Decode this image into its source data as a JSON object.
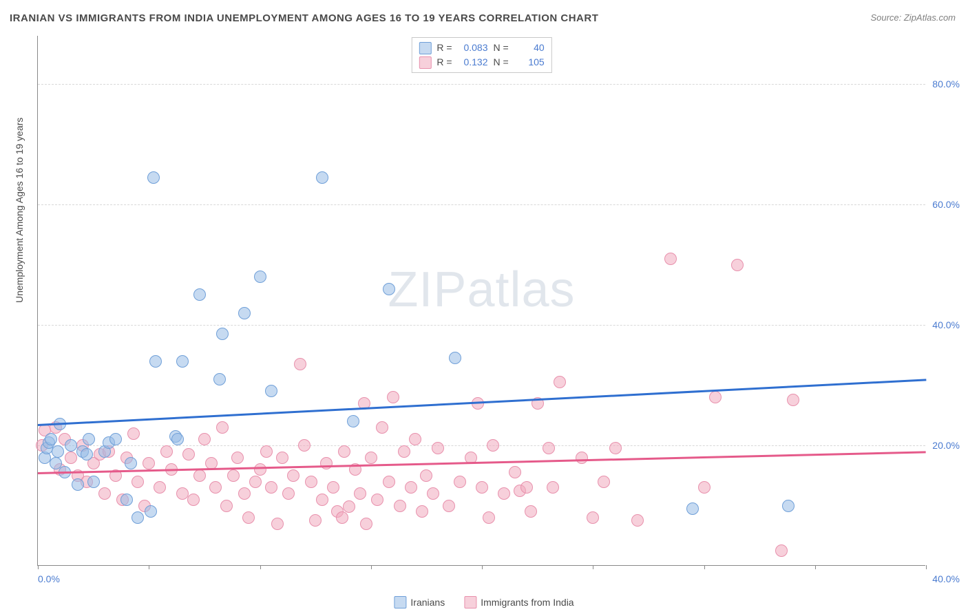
{
  "title": "IRANIAN VS IMMIGRANTS FROM INDIA UNEMPLOYMENT AMONG AGES 16 TO 19 YEARS CORRELATION CHART",
  "source": "Source: ZipAtlas.com",
  "ylabel": "Unemployment Among Ages 16 to 19 years",
  "watermark_a": "ZIP",
  "watermark_b": "atlas",
  "chart": {
    "type": "scatter",
    "xlim": [
      0,
      40
    ],
    "ylim": [
      0,
      88
    ],
    "xticks": [
      0,
      5,
      10,
      15,
      20,
      25,
      30,
      35,
      40
    ],
    "xtick_labels": {
      "0": "0.0%",
      "40": "40.0%"
    },
    "yticks": [
      20,
      40,
      60,
      80
    ],
    "ytick_labels": {
      "20": "20.0%",
      "40": "40.0%",
      "60": "60.0%",
      "80": "80.0%"
    },
    "grid_color": "#d8d8d8",
    "background_color": "#ffffff",
    "axis_color": "#888888",
    "tick_label_color": "#4a7bd0",
    "point_radius": 9,
    "series": [
      {
        "name": "Iranians",
        "fill": "rgba(151,187,229,0.55)",
        "stroke": "#6f9fd8",
        "trend_color": "#2f6fd0",
        "trend": {
          "x0": 0,
          "y0": 23.5,
          "x1": 40,
          "y1": 31.0
        },
        "R": "0.083",
        "N": "40",
        "points": [
          [
            0.3,
            18
          ],
          [
            0.4,
            19.5
          ],
          [
            0.5,
            20.5
          ],
          [
            0.6,
            21
          ],
          [
            0.8,
            17
          ],
          [
            0.9,
            19
          ],
          [
            1.0,
            23.5
          ],
          [
            1.2,
            15.5
          ],
          [
            1.5,
            20
          ],
          [
            1.8,
            13.5
          ],
          [
            2.0,
            19
          ],
          [
            2.2,
            18.5
          ],
          [
            2.3,
            21
          ],
          [
            2.5,
            14
          ],
          [
            3.0,
            19
          ],
          [
            3.2,
            20.5
          ],
          [
            3.5,
            21
          ],
          [
            4.0,
            11
          ],
          [
            4.2,
            17
          ],
          [
            4.5,
            8
          ],
          [
            5.1,
            9
          ],
          [
            5.2,
            64.5
          ],
          [
            5.3,
            34
          ],
          [
            6.2,
            21.5
          ],
          [
            6.3,
            21
          ],
          [
            6.5,
            34
          ],
          [
            7.3,
            45
          ],
          [
            8.2,
            31
          ],
          [
            8.3,
            38.5
          ],
          [
            9.3,
            42
          ],
          [
            10.0,
            48
          ],
          [
            10.5,
            29
          ],
          [
            12.8,
            64.5
          ],
          [
            14.2,
            24
          ],
          [
            15.8,
            46
          ],
          [
            18.8,
            34.5
          ],
          [
            29.5,
            9.5
          ],
          [
            33.8,
            10
          ]
        ]
      },
      {
        "name": "Immigrants from India",
        "fill": "rgba(240,170,190,0.55)",
        "stroke": "#e890ac",
        "trend_color": "#e55a8a",
        "trend": {
          "x0": 0,
          "y0": 15.5,
          "x1": 40,
          "y1": 19.0
        },
        "R": "0.132",
        "N": "105",
        "points": [
          [
            0.2,
            20
          ],
          [
            0.3,
            22.5
          ],
          [
            0.8,
            23
          ],
          [
            1.0,
            16
          ],
          [
            1.2,
            21
          ],
          [
            1.5,
            18
          ],
          [
            1.8,
            15
          ],
          [
            2.0,
            20
          ],
          [
            2.2,
            14
          ],
          [
            2.5,
            17
          ],
          [
            2.8,
            18.5
          ],
          [
            3.0,
            12
          ],
          [
            3.2,
            19
          ],
          [
            3.5,
            15
          ],
          [
            3.8,
            11
          ],
          [
            4.0,
            18
          ],
          [
            4.3,
            22
          ],
          [
            4.5,
            14
          ],
          [
            4.8,
            10
          ],
          [
            5.0,
            17
          ],
          [
            5.5,
            13
          ],
          [
            5.8,
            19
          ],
          [
            6.0,
            16
          ],
          [
            6.5,
            12
          ],
          [
            6.8,
            18.5
          ],
          [
            7.0,
            11
          ],
          [
            7.3,
            15
          ],
          [
            7.5,
            21
          ],
          [
            7.8,
            17
          ],
          [
            8.0,
            13
          ],
          [
            8.3,
            23
          ],
          [
            8.5,
            10
          ],
          [
            8.8,
            15
          ],
          [
            9.0,
            18
          ],
          [
            9.3,
            12
          ],
          [
            9.5,
            8
          ],
          [
            9.8,
            14
          ],
          [
            10.0,
            16
          ],
          [
            10.3,
            19
          ],
          [
            10.5,
            13
          ],
          [
            10.8,
            7
          ],
          [
            11.0,
            18
          ],
          [
            11.3,
            12
          ],
          [
            11.5,
            15
          ],
          [
            11.8,
            33.5
          ],
          [
            12.0,
            20
          ],
          [
            12.3,
            14
          ],
          [
            12.5,
            7.5
          ],
          [
            12.8,
            11
          ],
          [
            13.0,
            17
          ],
          [
            13.3,
            13
          ],
          [
            13.5,
            9
          ],
          [
            13.7,
            8
          ],
          [
            13.8,
            19
          ],
          [
            14.0,
            9.8
          ],
          [
            14.3,
            16
          ],
          [
            14.5,
            12
          ],
          [
            14.7,
            27
          ],
          [
            14.8,
            7
          ],
          [
            15.0,
            18
          ],
          [
            15.3,
            11
          ],
          [
            15.5,
            23
          ],
          [
            15.8,
            14
          ],
          [
            16.0,
            28
          ],
          [
            16.3,
            10
          ],
          [
            16.5,
            19
          ],
          [
            16.8,
            13
          ],
          [
            17.0,
            21
          ],
          [
            17.3,
            9
          ],
          [
            17.5,
            15
          ],
          [
            17.8,
            12
          ],
          [
            18.0,
            19.5
          ],
          [
            18.5,
            10
          ],
          [
            19.0,
            14
          ],
          [
            19.5,
            18
          ],
          [
            19.8,
            27
          ],
          [
            20.0,
            13
          ],
          [
            20.3,
            8
          ],
          [
            20.5,
            20
          ],
          [
            21.0,
            12
          ],
          [
            21.5,
            15.5
          ],
          [
            21.7,
            12.5
          ],
          [
            22.0,
            13
          ],
          [
            22.2,
            9
          ],
          [
            22.5,
            27
          ],
          [
            23.0,
            19.5
          ],
          [
            23.2,
            13
          ],
          [
            23.5,
            30.5
          ],
          [
            24.5,
            18
          ],
          [
            25.0,
            8
          ],
          [
            25.5,
            14
          ],
          [
            26.0,
            19.5
          ],
          [
            27.0,
            7.5
          ],
          [
            28.5,
            51
          ],
          [
            30.0,
            13
          ],
          [
            30.5,
            28
          ],
          [
            31.5,
            50
          ],
          [
            33.5,
            2.5
          ],
          [
            34.0,
            27.5
          ]
        ]
      }
    ]
  },
  "legend": {
    "series1_label": "Iranians",
    "series2_label": "Immigrants from India"
  },
  "stats_labels": {
    "R": "R =",
    "N": "N ="
  }
}
